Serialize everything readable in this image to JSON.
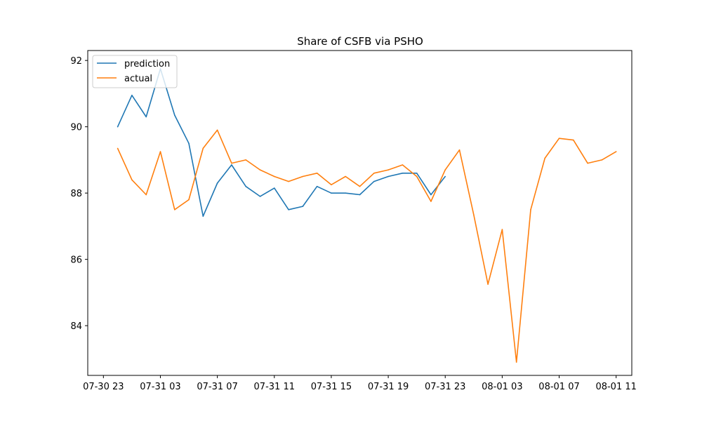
{
  "chart_data": {
    "type": "line",
    "title": "Share of CSFB via PSHO",
    "xlabel": "",
    "ylabel": "",
    "x_unit": "hours since 07-30 23:00",
    "x_ticks": [
      {
        "pos": 0,
        "label": "07-30 23"
      },
      {
        "pos": 4,
        "label": "07-31 03"
      },
      {
        "pos": 8,
        "label": "07-31 07"
      },
      {
        "pos": 12,
        "label": "07-31 11"
      },
      {
        "pos": 16,
        "label": "07-31 15"
      },
      {
        "pos": 20,
        "label": "07-31 19"
      },
      {
        "pos": 24,
        "label": "07-31 23"
      },
      {
        "pos": 28,
        "label": "08-01 03"
      },
      {
        "pos": 32,
        "label": "08-01 07"
      },
      {
        "pos": 36,
        "label": "08-01 11"
      }
    ],
    "y_ticks": [
      84,
      86,
      88,
      90,
      92
    ],
    "xlim": [
      -1.1,
      37.1
    ],
    "ylim": [
      82.5,
      92.3
    ],
    "legend_position": "top-left",
    "series": [
      {
        "name": "prediction",
        "color": "#1f77b4",
        "x": [
          1,
          2,
          3,
          4,
          5,
          6,
          7,
          8,
          9,
          10,
          11,
          12,
          13,
          14,
          15,
          16,
          17,
          18,
          19,
          20,
          21,
          22,
          23,
          24
        ],
        "values": [
          90.0,
          90.95,
          90.3,
          91.75,
          90.35,
          89.5,
          87.3,
          88.3,
          88.85,
          88.2,
          87.9,
          88.15,
          87.5,
          87.6,
          88.2,
          88.0,
          88.0,
          87.95,
          88.35,
          88.5,
          88.6,
          88.6,
          87.95,
          88.5
        ]
      },
      {
        "name": "actual",
        "color": "#ff7f0e",
        "x": [
          1,
          2,
          3,
          4,
          5,
          6,
          7,
          8,
          9,
          10,
          11,
          12,
          13,
          14,
          15,
          16,
          17,
          18,
          19,
          20,
          21,
          22,
          23,
          24,
          25,
          26,
          27,
          28,
          29,
          30,
          31,
          32,
          33,
          34,
          35,
          36
        ],
        "values": [
          89.35,
          88.4,
          87.95,
          89.25,
          87.5,
          87.8,
          89.35,
          89.9,
          88.9,
          89.0,
          88.7,
          88.5,
          88.35,
          88.5,
          88.6,
          88.25,
          88.5,
          88.2,
          88.6,
          88.7,
          88.85,
          88.5,
          87.75,
          88.7,
          89.3,
          87.35,
          85.25,
          86.9,
          82.9,
          87.5,
          89.05,
          89.65,
          89.6,
          88.9,
          89.0,
          89.25
        ]
      }
    ]
  }
}
